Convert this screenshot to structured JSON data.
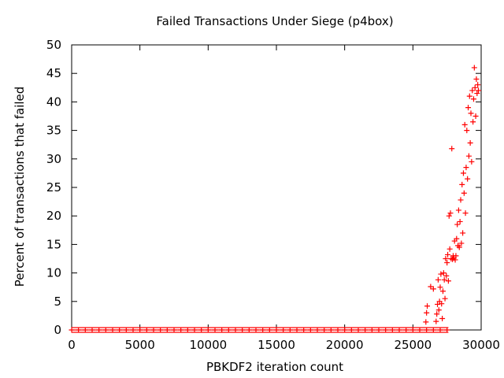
{
  "chart_data": {
    "type": "scatter",
    "title": "Failed Transactions Under Siege (p4box)",
    "xlabel": "PBKDF2 iteration count",
    "ylabel": "Percent of transactions that failed",
    "xlim": [
      0,
      30000
    ],
    "ylim": [
      0,
      50
    ],
    "x_ticks": [
      0,
      5000,
      10000,
      15000,
      20000,
      25000,
      30000
    ],
    "y_ticks": [
      0,
      5,
      10,
      15,
      20,
      25,
      30,
      35,
      40,
      45,
      50
    ],
    "x_tick_labels": [
      "0",
      "5000",
      "10000",
      "15000",
      "20000",
      "25000",
      "30000"
    ],
    "y_tick_labels": [
      "0",
      "5",
      "10",
      "15",
      "20",
      "25",
      "30",
      "35",
      "40",
      "45",
      "50"
    ],
    "grid": false,
    "legend": "none",
    "marker": "+",
    "color": "#ff0000",
    "series": [
      {
        "points": [
          [
            0,
            0
          ],
          [
            500,
            0
          ],
          [
            1000,
            0
          ],
          [
            1500,
            0
          ],
          [
            2000,
            0
          ],
          [
            2500,
            0
          ],
          [
            3000,
            0
          ],
          [
            3500,
            0
          ],
          [
            4000,
            0
          ],
          [
            4500,
            0
          ],
          [
            5000,
            0
          ],
          [
            5500,
            0
          ],
          [
            6000,
            0
          ],
          [
            6500,
            0
          ],
          [
            7000,
            0
          ],
          [
            7500,
            0
          ],
          [
            8000,
            0
          ],
          [
            8500,
            0
          ],
          [
            9000,
            0
          ],
          [
            9500,
            0
          ],
          [
            10000,
            0
          ],
          [
            10500,
            0
          ],
          [
            11000,
            0
          ],
          [
            11500,
            0
          ],
          [
            12000,
            0
          ],
          [
            12500,
            0
          ],
          [
            13000,
            0
          ],
          [
            13500,
            0
          ],
          [
            14000,
            0
          ],
          [
            14500,
            0
          ],
          [
            15000,
            0
          ],
          [
            15500,
            0
          ],
          [
            16000,
            0
          ],
          [
            16500,
            0
          ],
          [
            17000,
            0
          ],
          [
            17500,
            0
          ],
          [
            18000,
            0
          ],
          [
            18500,
            0
          ],
          [
            19000,
            0
          ],
          [
            19500,
            0
          ],
          [
            20000,
            0
          ],
          [
            20500,
            0
          ],
          [
            21000,
            0
          ],
          [
            21500,
            0
          ],
          [
            22000,
            0
          ],
          [
            22500,
            0
          ],
          [
            23000,
            0
          ],
          [
            23500,
            0
          ],
          [
            24000,
            0
          ],
          [
            24500,
            0
          ],
          [
            25000,
            0
          ],
          [
            25500,
            0
          ],
          [
            26000,
            0
          ],
          [
            26500,
            0
          ],
          [
            27000,
            0
          ],
          [
            27500,
            0
          ],
          [
            25950,
            1.4
          ],
          [
            26000,
            3.0
          ],
          [
            26050,
            4.2
          ],
          [
            26300,
            7.6
          ],
          [
            26500,
            7.2
          ],
          [
            26700,
            1.5
          ],
          [
            26750,
            2.8
          ],
          [
            26800,
            4.5
          ],
          [
            26850,
            8.8
          ],
          [
            26900,
            3.5
          ],
          [
            26950,
            5.0
          ],
          [
            27000,
            7.5
          ],
          [
            27050,
            9.8
          ],
          [
            27100,
            4.6
          ],
          [
            27150,
            2.0
          ],
          [
            27200,
            6.8
          ],
          [
            27250,
            10.0
          ],
          [
            27300,
            8.8
          ],
          [
            27350,
            5.5
          ],
          [
            27400,
            12.5
          ],
          [
            27450,
            9.5
          ],
          [
            27500,
            11.8
          ],
          [
            27550,
            13.2
          ],
          [
            27600,
            8.6
          ],
          [
            27650,
            20.0
          ],
          [
            27700,
            14.2
          ],
          [
            27750,
            20.5
          ],
          [
            27800,
            12.5
          ],
          [
            27850,
            31.8
          ],
          [
            27900,
            12.4
          ],
          [
            27950,
            13.0
          ],
          [
            28000,
            12.6
          ],
          [
            28050,
            15.6
          ],
          [
            28100,
            12.3
          ],
          [
            28150,
            13.0
          ],
          [
            28200,
            16.0
          ],
          [
            28250,
            18.5
          ],
          [
            28300,
            14.8
          ],
          [
            28350,
            21.0
          ],
          [
            28400,
            14.5
          ],
          [
            28450,
            19.0
          ],
          [
            28500,
            22.8
          ],
          [
            28550,
            15.2
          ],
          [
            28600,
            25.5
          ],
          [
            28650,
            17.0
          ],
          [
            28700,
            27.5
          ],
          [
            28750,
            24.0
          ],
          [
            28800,
            36.0
          ],
          [
            28850,
            20.5
          ],
          [
            28900,
            28.5
          ],
          [
            28950,
            35.0
          ],
          [
            29000,
            26.5
          ],
          [
            29050,
            39.0
          ],
          [
            29100,
            30.5
          ],
          [
            29150,
            41.0
          ],
          [
            29200,
            32.8
          ],
          [
            29250,
            38.0
          ],
          [
            29300,
            29.5
          ],
          [
            29350,
            42.0
          ],
          [
            29400,
            36.5
          ],
          [
            29450,
            40.5
          ],
          [
            29500,
            46.0
          ],
          [
            29550,
            42.5
          ],
          [
            29600,
            37.5
          ],
          [
            29650,
            44.0
          ],
          [
            29700,
            41.5
          ],
          [
            29750,
            43.0
          ],
          [
            29800,
            42.0
          ]
        ]
      }
    ]
  }
}
